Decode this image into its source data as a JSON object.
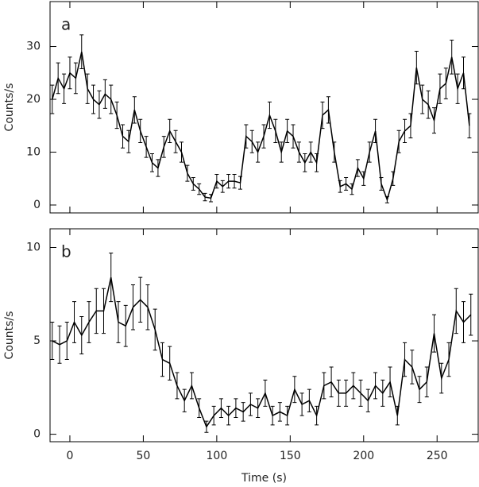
{
  "chart_data": [
    {
      "type": "line",
      "label": "a",
      "ylabel": "Counts/s",
      "color": "#000000",
      "xlim": [
        -13.5,
        278
      ],
      "ylim": [
        -1.5,
        38.5
      ],
      "xticks": [
        0,
        50,
        100,
        150,
        200,
        250
      ],
      "yticks": [
        0,
        10,
        20,
        30
      ],
      "x": [
        -12,
        -8,
        -4,
        0,
        4,
        8,
        12,
        16,
        20,
        24,
        28,
        32,
        36,
        40,
        44,
        48,
        52,
        56,
        60,
        64,
        68,
        72,
        76,
        80,
        84,
        88,
        92,
        96,
        100,
        104,
        108,
        112,
        116,
        120,
        124,
        128,
        132,
        136,
        140,
        144,
        148,
        152,
        156,
        160,
        164,
        168,
        172,
        176,
        180,
        184,
        188,
        192,
        196,
        200,
        204,
        208,
        212,
        216,
        220,
        224,
        228,
        232,
        236,
        240,
        244,
        248,
        252,
        256,
        260,
        264,
        268,
        272
      ],
      "values": [
        20,
        24,
        22,
        25,
        24,
        29,
        22,
        20,
        19,
        21,
        20,
        17,
        13,
        12,
        18,
        14,
        11,
        8,
        7,
        11,
        14,
        12,
        10,
        6,
        4,
        3,
        1.5,
        1.3,
        4.5,
        3.5,
        4.5,
        4.5,
        4.2,
        13,
        12,
        10,
        13,
        17,
        14,
        10,
        14,
        13,
        10,
        8,
        10,
        8,
        17,
        18,
        10,
        3.5,
        4,
        3,
        7,
        5,
        10,
        14,
        4,
        1,
        5,
        12,
        14,
        15,
        26,
        20,
        19,
        16,
        22,
        23,
        28,
        22,
        25,
        15
      ],
      "errors": [
        2.7,
        2.9,
        2.8,
        3,
        2.9,
        3.2,
        2.8,
        2.7,
        2.6,
        2.7,
        2.7,
        2.5,
        2.2,
        2.1,
        2.5,
        2.2,
        2,
        1.7,
        1.6,
        2,
        2.2,
        2.1,
        1.9,
        1.5,
        1.2,
        1,
        0.7,
        0.7,
        1.3,
        1.1,
        1.3,
        1.3,
        1.2,
        2.2,
        2.1,
        1.9,
        2.2,
        2.5,
        2.2,
        1.9,
        2.2,
        2.2,
        1.9,
        1.7,
        1.9,
        1.7,
        2.5,
        2.5,
        1.9,
        1.1,
        1.2,
        1,
        1.6,
        1.3,
        1.9,
        2.2,
        1.2,
        0.6,
        1.3,
        2.1,
        2.2,
        2.3,
        3.1,
        2.7,
        2.6,
        2.4,
        2.8,
        2.9,
        3.2,
        2.8,
        3,
        2.3
      ]
    },
    {
      "type": "line",
      "label": "b",
      "ylabel": "Counts/s",
      "xlabel": "Time (s)",
      "color": "#000000",
      "xlim": [
        -13.5,
        278
      ],
      "ylim": [
        -0.4,
        11
      ],
      "xticks": [
        0,
        50,
        100,
        150,
        200,
        250
      ],
      "yticks": [
        0,
        5,
        10
      ],
      "x": [
        -12,
        -7,
        -2,
        3,
        8,
        13,
        18,
        23,
        28,
        33,
        38,
        43,
        48,
        53,
        58,
        63,
        68,
        73,
        78,
        83,
        88,
        93,
        98,
        103,
        108,
        113,
        118,
        123,
        128,
        133,
        138,
        143,
        148,
        153,
        158,
        163,
        168,
        173,
        178,
        183,
        188,
        193,
        198,
        203,
        208,
        213,
        218,
        223,
        228,
        233,
        238,
        243,
        248,
        253,
        258,
        263,
        268,
        273
      ],
      "values": [
        5.0,
        4.8,
        5.0,
        6.0,
        5.3,
        6.0,
        6.6,
        6.6,
        8.4,
        6.0,
        5.8,
        6.8,
        7.2,
        6.8,
        5.6,
        4.0,
        3.8,
        2.6,
        1.8,
        2.6,
        1.4,
        0.4,
        1.0,
        1.4,
        1.0,
        1.4,
        1.2,
        1.6,
        1.4,
        2.2,
        1.0,
        1.2,
        1.0,
        2.4,
        1.6,
        1.8,
        1.0,
        2.6,
        2.8,
        2.2,
        2.2,
        2.6,
        2.2,
        1.8,
        2.6,
        2.2,
        2.8,
        1.0,
        4.0,
        3.6,
        2.4,
        2.8,
        5.4,
        3.0,
        4.0,
        6.6,
        6.0,
        6.4
      ],
      "errors": [
        1.0,
        1.0,
        1.0,
        1.1,
        1.0,
        1.1,
        1.2,
        1.2,
        1.3,
        1.1,
        1.1,
        1.2,
        1.2,
        1.2,
        1.1,
        0.9,
        0.9,
        0.7,
        0.6,
        0.7,
        0.5,
        0.3,
        0.5,
        0.5,
        0.5,
        0.5,
        0.5,
        0.6,
        0.5,
        0.7,
        0.5,
        0.5,
        0.5,
        0.7,
        0.6,
        0.6,
        0.5,
        0.7,
        0.8,
        0.7,
        0.7,
        0.7,
        0.7,
        0.6,
        0.7,
        0.7,
        0.8,
        0.5,
        0.9,
        0.9,
        0.7,
        0.8,
        1.0,
        0.8,
        0.9,
        1.2,
        1.1,
        1.1
      ]
    }
  ]
}
